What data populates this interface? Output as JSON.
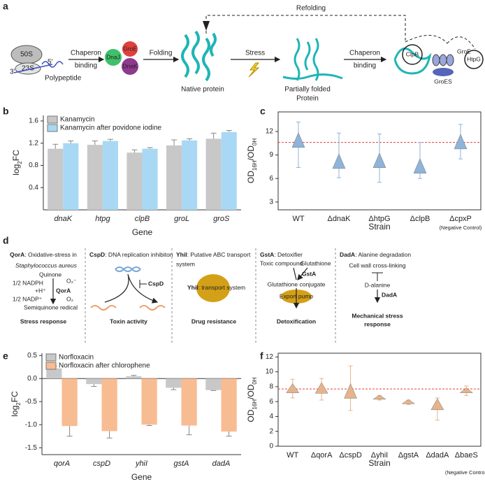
{
  "panel_labels": [
    "a",
    "b",
    "c",
    "d",
    "e",
    "f"
  ],
  "diagram_a": {
    "refolding": "Refolding",
    "ribosome_large": "50S",
    "ribosome_small": "23S",
    "end3": "3'",
    "end5": "5'",
    "polypeptide": "Polypeptide",
    "step1": [
      "Chaperon",
      "binding"
    ],
    "chaperones1": [
      "DnaJ",
      "GroE",
      "DnaK"
    ],
    "step2": "Folding",
    "native": "Native protein",
    "step3": "Stress",
    "partial": [
      "Partially folded",
      "Protein"
    ],
    "step4": [
      "Chaperon",
      "binding"
    ],
    "chaperones2": [
      "ClpB",
      "GroE",
      "GroES",
      "HtpG"
    ]
  },
  "diagram_d": {
    "boxes": [
      {
        "name": "QorA",
        "title": ": Oxidative-stress in",
        "labels": [
          "Staphylococcus aureus",
          "Quinone",
          "1/2 NADPH",
          "+H⁺",
          "QorA",
          "O₂⁻",
          "1/2 NADP⁺",
          "O₂",
          "Semiquinone redical"
        ],
        "footer": [
          "Stress response"
        ]
      },
      {
        "name": "CspD",
        "title": ": DNA replication inhibiton",
        "labels": [
          "CspD"
        ],
        "footer": [
          "Toxin activity"
        ]
      },
      {
        "name": "YhiI",
        "title": ": Putative ABC transport",
        "labels": [
          "system",
          "YhiI",
          ": transport system"
        ],
        "footer": [
          "Drug resistance"
        ]
      },
      {
        "name": "GstA",
        "title": ": Detoxifier",
        "labels": [
          "Toxic compound",
          "Glutathione",
          "GstA",
          "Glutathione conjugate",
          "Export pump"
        ],
        "footer": [
          "Detoxification"
        ]
      },
      {
        "name": "DadA",
        "title": ": Alanine degradation",
        "labels": [
          "Cell wall cross-linking",
          "D-alanine",
          "DadA"
        ],
        "footer": [
          "Mechanical stress",
          "response"
        ]
      }
    ]
  },
  "chart_data": [
    {
      "type": "bar",
      "ylabel": [
        "log",
        "2",
        "FC"
      ],
      "xlabel": "Gene",
      "categories": [
        "dnaK",
        "htpg",
        "clpB",
        "groL",
        "groS"
      ],
      "series": [
        {
          "name": "Kanamycin",
          "color": "#c8c8c8",
          "values": [
            1.1,
            1.17,
            1.03,
            1.16,
            1.28
          ],
          "errors": [
            0.08,
            0.07,
            0.05,
            0.1,
            0.1
          ]
        },
        {
          "name": "Kanamycin after povidone iodine",
          "color": "#a8d8f4",
          "values": [
            1.2,
            1.24,
            1.1,
            1.25,
            1.4
          ],
          "errors": [
            0.04,
            0.03,
            0.02,
            0.03,
            0.03
          ]
        }
      ],
      "ylim": [
        0,
        1.7
      ],
      "yticks": [
        0.4,
        0.8,
        1.2,
        1.6
      ]
    },
    {
      "type": "violin",
      "ylabel": [
        "OD",
        "16H",
        "/OD",
        "0H"
      ],
      "xlabel": "Strain",
      "annotation": "(Negative Control)",
      "categories": [
        "WT",
        "ΔdnaK",
        "ΔhtpG",
        "ΔclpB",
        "ΔcpxP"
      ],
      "color": "#8fb3d9",
      "values": [
        10.6,
        7.9,
        8.0,
        7.3,
        10.4
      ],
      "lower": [
        7.4,
        6.1,
        5.5,
        6.0,
        8.5
      ],
      "upper": [
        13.2,
        11.8,
        11.7,
        10.6,
        12.9
      ],
      "reference_line": 10.6,
      "reference_color": "#e0413c",
      "ylim": [
        2,
        14.5
      ],
      "yticks": [
        3,
        6,
        9,
        12
      ]
    },
    {
      "type": "bar",
      "ylabel": [
        "log",
        "2",
        "FC"
      ],
      "xlabel": "Gene",
      "categories": [
        "qorA",
        "cspD",
        "yhiI",
        "gstA",
        "dadA"
      ],
      "series": [
        {
          "name": "Norfloxacin",
          "color": "#c8c8c8",
          "values": [
            0.22,
            -0.12,
            0.05,
            -0.2,
            -0.25
          ],
          "errors": [
            0.05,
            0.05,
            0.02,
            0.04,
            0.01
          ]
        },
        {
          "name": "Norfloxacin after chlorophene",
          "color": "#f8bc93",
          "values": [
            -1.03,
            -1.14,
            -1.0,
            -1.02,
            -1.15
          ],
          "errors": [
            0.22,
            0.15,
            0.02,
            0.2,
            0.1
          ]
        }
      ],
      "ylim": [
        -1.65,
        0.55
      ],
      "yticks": [
        0.5,
        {
          "value": 0,
          "label": "0.0"
        },
        -0.5,
        {
          "value": -1,
          "label": "-1.0"
        },
        -1.5
      ]
    },
    {
      "type": "violin",
      "ylabel": [
        "OD",
        "16H",
        "/OD",
        "0H"
      ],
      "xlabel": "Strain",
      "annotation": "(Negative Control)",
      "categories": [
        "WT",
        "ΔqorA",
        "ΔcspD",
        "ΔyhiI",
        "ΔgstA",
        "ΔdadA",
        "ΔbaeS"
      ],
      "color": "#e6b38b",
      "values": [
        7.6,
        7.6,
        7.1,
        6.5,
        5.9,
        5.4,
        7.4
      ],
      "lower": [
        6.5,
        6.2,
        4.8,
        6.2,
        5.6,
        3.5,
        6.8
      ],
      "upper": [
        9.0,
        9.1,
        10.8,
        6.8,
        6.2,
        6.5,
        8.1
      ],
      "reference_line": 7.7,
      "reference_color": "#e0413c",
      "ylim": [
        0,
        12.5
      ],
      "yticks": [
        0,
        2,
        4,
        6,
        8,
        10,
        12
      ]
    }
  ]
}
